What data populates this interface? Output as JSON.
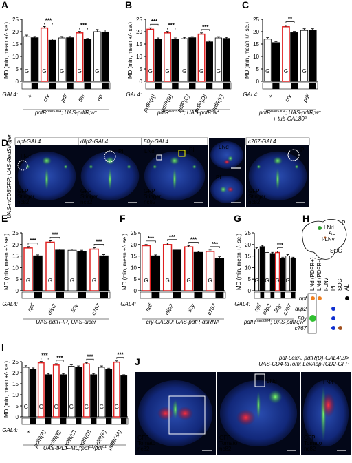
{
  "chart_data": [
    {
      "label": "A",
      "type": "bar",
      "ylabel": "MD (min, mean +/- se.)",
      "ylim": [
        0,
        25
      ],
      "yticks": [
        0,
        5,
        10,
        15,
        20,
        25
      ],
      "row_label": "GAL4:",
      "categories": [
        "+",
        "cry",
        "pdf",
        "tim",
        "ap"
      ],
      "series": [
        {
          "name": "G",
          "color": "#ffffff",
          "edge_colors": [
            "#000000",
            "#e02020",
            "#000000",
            "#e02020",
            "#000000"
          ],
          "values": [
            18,
            21.5,
            17.5,
            19.5,
            20
          ],
          "errors": [
            0.6,
            0.6,
            0.6,
            0.6,
            0.9
          ]
        },
        {
          "name": "S",
          "color": "#000000",
          "values": [
            17.5,
            16.5,
            17.5,
            16.8,
            19.8
          ],
          "errors": [
            0.6,
            0.6,
            0.6,
            0.5,
            0.9
          ]
        }
      ],
      "significance": [
        null,
        "***",
        null,
        "***",
        null
      ],
      "genotype": [
        [
          {
            "text": "pdfR"
          },
          {
            "sup": "han5304"
          },
          {
            "text": "; UAS-pdfR;w"
          },
          {
            "sup": "+"
          }
        ]
      ]
    },
    {
      "label": "B",
      "type": "bar",
      "ylabel": "MD (min, mean +/- se.)",
      "ylim": [
        0,
        25
      ],
      "yticks": [
        0,
        5,
        10,
        15,
        20,
        25
      ],
      "row_label": "GAL4:",
      "categories": [
        "pdfR(A)",
        "pdfR(B)",
        "pdfR(C)",
        "pdfR(D)",
        "pdfR(F)"
      ],
      "series": [
        {
          "name": "G",
          "color": "#ffffff",
          "edge_colors": [
            "#e02020",
            "#e02020",
            "#000000",
            "#e02020",
            "#000000"
          ],
          "values": [
            21,
            19.5,
            17.2,
            19,
            17.5
          ],
          "errors": [
            0.6,
            0.6,
            0.5,
            0.5,
            0.5
          ]
        },
        {
          "name": "S",
          "color": "#000000",
          "values": [
            17,
            17,
            17.5,
            15.8,
            17.2
          ],
          "errors": [
            0.5,
            0.5,
            0.5,
            0.5,
            0.5
          ]
        }
      ],
      "significance": [
        "***",
        "***",
        null,
        "***",
        null
      ],
      "genotype": [
        [
          {
            "text": "pdfR"
          },
          {
            "sup": "han5304"
          },
          {
            "text": "; UAS-pdfR;w"
          },
          {
            "sup": "+"
          }
        ]
      ]
    },
    {
      "label": "C",
      "type": "bar",
      "ylabel": "MD (min, mean +/- se.)",
      "ylim": [
        0,
        25
      ],
      "yticks": [
        0,
        5,
        10,
        15,
        20,
        25
      ],
      "row_label": "GAL4:",
      "categories": [
        "+",
        "cry",
        "pdf"
      ],
      "series": [
        {
          "name": "G",
          "color": "#ffffff",
          "edge_colors": [
            "#000000",
            "#e02020",
            "#000000"
          ],
          "values": [
            17,
            22,
            20.5
          ],
          "errors": [
            0.6,
            0.6,
            0.7
          ]
        },
        {
          "name": "S",
          "color": "#000000",
          "values": [
            15.5,
            19.5,
            20.5
          ],
          "errors": [
            0.5,
            0.6,
            0.7
          ]
        }
      ],
      "significance": [
        null,
        "**",
        null
      ],
      "genotype": [
        [
          {
            "text": "pdfR"
          },
          {
            "sup": "han5304"
          },
          {
            "text": "; UAS-pdfR;w"
          },
          {
            "sup": "+"
          }
        ],
        [
          {
            "text": "+ tub-GAL80"
          },
          {
            "sup": "ts"
          }
        ]
      ]
    },
    {
      "label": "E",
      "type": "bar",
      "ylabel": "MD (min, mean +/- se.)",
      "ylim": [
        0,
        25
      ],
      "yticks": [
        0,
        5,
        10,
        15,
        20,
        25
      ],
      "row_label": "GAL4:",
      "categories": [
        "npf",
        "dilp2",
        "50y",
        "c767"
      ],
      "series": [
        {
          "name": "G",
          "color": "#ffffff",
          "edge_colors": [
            "#e02020",
            "#e02020",
            "#000000",
            "#e02020"
          ],
          "values": [
            18.5,
            21,
            17.5,
            18
          ],
          "errors": [
            0.6,
            0.6,
            0.5,
            0.6
          ]
        },
        {
          "name": "S",
          "color": "#000000",
          "values": [
            15,
            17.5,
            17,
            15
          ],
          "errors": [
            0.5,
            0.5,
            0.5,
            0.6
          ]
        }
      ],
      "significance": [
        "***",
        "***",
        null,
        "***"
      ],
      "genotype": [
        [
          {
            "text": "UAS-pdfR-IR; UAS-dicer"
          }
        ]
      ]
    },
    {
      "label": "F",
      "type": "bar",
      "ylabel": "MD (min, mean +/- se.)",
      "ylim": [
        0,
        25
      ],
      "yticks": [
        0,
        5,
        10,
        15,
        20,
        25
      ],
      "row_label": "GAL4:",
      "categories": [
        "npf",
        "dilp2",
        "50y",
        "c767"
      ],
      "series": [
        {
          "name": "G",
          "color": "#ffffff",
          "edge_colors": [
            "#e02020",
            "#e02020",
            "#e02020",
            "#e02020"
          ],
          "values": [
            19.5,
            20,
            19,
            17
          ],
          "errors": [
            0.5,
            0.6,
            0.5,
            0.6
          ]
        },
        {
          "name": "S",
          "color": "#000000",
          "values": [
            15,
            17.5,
            16.5,
            14
          ],
          "errors": [
            0.5,
            0.5,
            0.5,
            0.7
          ]
        }
      ],
      "significance": [
        "***",
        "***",
        "***",
        "***"
      ],
      "genotype": [
        [
          {
            "text": "cry-GAL80; UAS-pdfR-dsRNA"
          }
        ]
      ]
    },
    {
      "label": "G",
      "type": "bar",
      "ylabel": "MD (min, mean +/- se.)",
      "ylim": [
        0,
        25
      ],
      "yticks": [
        0,
        5,
        10,
        15,
        20,
        25
      ],
      "row_label": "GAL4:",
      "categories": [
        "npf",
        "dilp2",
        "50y",
        "c767"
      ],
      "series": [
        {
          "name": "G",
          "color": "#ffffff",
          "edge_colors": [
            "#000000",
            "#000000",
            "#e02020",
            "#000000"
          ],
          "values": [
            18,
            16.5,
            16.5,
            15
          ],
          "errors": [
            0.6,
            0.6,
            0.6,
            0.6
          ]
        },
        {
          "name": "S",
          "color": "#000000",
          "values": [
            19,
            16,
            14,
            14
          ],
          "errors": [
            0.6,
            0.6,
            0.5,
            0.5
          ]
        }
      ],
      "significance": [
        null,
        null,
        "***",
        null
      ],
      "genotype": [
        [
          {
            "text": "pdfR"
          },
          {
            "sup": "han5304"
          },
          {
            "text": "; UAS-pdfR;w"
          },
          {
            "sup": "+"
          }
        ]
      ]
    },
    {
      "label": "I",
      "type": "bar",
      "ylabel": "MD (min, mean +/- se.)",
      "ylim": [
        0,
        25
      ],
      "yticks": [
        0,
        5,
        10,
        15,
        20,
        25
      ],
      "row_label": "GAL4:",
      "categories": [
        "+",
        "pdfR(A)",
        "pdfR(B)",
        "pdfR(C)",
        "pdfR(D)",
        "pdfR(F)",
        "pdfR(3A)"
      ],
      "series": [
        {
          "name": "G",
          "color": "#ffffff",
          "edge_colors": [
            "#000000",
            "#e02020",
            "#e02020",
            "#000000",
            "#e02020",
            "#000000",
            "#e02020"
          ],
          "values": [
            22.5,
            24.5,
            23.5,
            23,
            24,
            22.5,
            24.8
          ],
          "errors": [
            0.7,
            0.6,
            0.6,
            0.6,
            0.6,
            0.6,
            0.6
          ]
        },
        {
          "name": "S",
          "color": "#000000",
          "values": [
            21.5,
            19,
            19,
            22.5,
            19,
            21.5,
            18.5
          ],
          "errors": [
            0.7,
            0.6,
            0.6,
            0.6,
            0.6,
            0.6,
            0.6
          ]
        }
      ],
      "significance": [
        null,
        "***",
        "***",
        null,
        "***",
        null,
        "***"
      ],
      "genotype": [
        [
          {
            "text": "UAS-tPDF-ML; pdf"
          },
          {
            "sup": "01"
          },
          {
            "text": "/pdf"
          },
          {
            "sup": "01"
          }
        ]
      ]
    }
  ],
  "panel_d": {
    "label": "D",
    "side_label": "UAS-mCD8GFP; UAS-RedStinger",
    "tiles": [
      "npf-GAL4",
      "dilp2-GAL4",
      "50y-GAL4",
      "c767-GAL4"
    ],
    "annotations": [
      "LNd",
      "PI"
    ],
    "channels": [
      "GFP",
      "Stinger",
      "nc82"
    ]
  },
  "panel_h": {
    "label": "H",
    "regions": [
      "LNd",
      "PI",
      "AL",
      "l-LNv",
      "SOG"
    ],
    "columns": [
      "LNd (PDFR+)",
      "LNd (PDFR-)",
      "l-LNv",
      "PI",
      "SOG",
      "AL"
    ],
    "rows": [
      "npf",
      "dilp2",
      "50y",
      "c767"
    ],
    "dots": [
      [
        "#f08020",
        "#f08020",
        null,
        null,
        null,
        "#000000"
      ],
      [
        null,
        null,
        null,
        "#1030d0",
        null,
        null
      ],
      [
        "#30c030",
        null,
        null,
        "#1030d0",
        null,
        null
      ],
      [
        null,
        null,
        null,
        "#1030d0",
        "#a05020",
        null
      ]
    ]
  },
  "panel_j": {
    "label": "J",
    "caption": [
      "pdf-LexA; pdfR(D)-GAL4(2)>",
      "UAS-CD4-tdTom; LexAop-rCD2-GFP"
    ],
    "annotations": [
      "LNd"
    ],
    "channels": [
      "GFP",
      "Tomato",
      "nc82"
    ]
  }
}
